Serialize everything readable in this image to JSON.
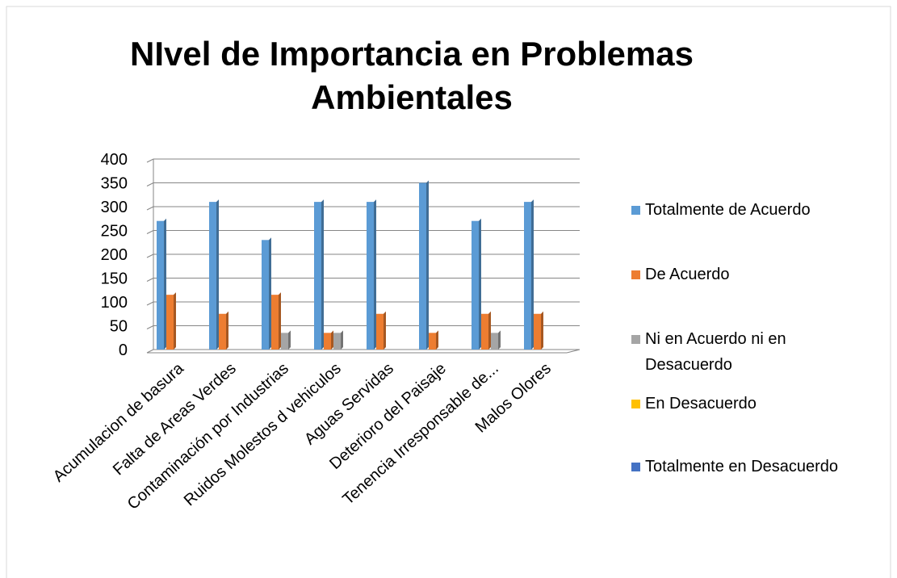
{
  "chart_data": {
    "type": "bar",
    "title": "NIvel de Importancia en Problemas Ambientales",
    "categories": [
      "Acumulacion de basura",
      "Falta de Areas Verdes",
      "Contaminación por Industrias",
      "Ruidos Molestos d vehiculos",
      "Aguas Servidas",
      "Deterioro del Paisaje",
      "Tenencia Irresponsable de...",
      "Malos Olores"
    ],
    "series": [
      {
        "name": "Totalmente de Acuerdo",
        "color": "#5b9bd5",
        "values": [
          270,
          310,
          230,
          310,
          310,
          350,
          270,
          310
        ]
      },
      {
        "name": "De Acuerdo",
        "color": "#ed7d31",
        "values": [
          115,
          75,
          115,
          35,
          75,
          35,
          75,
          75
        ]
      },
      {
        "name": "Ni en Acuerdo ni en Desacuerdo",
        "color": "#a5a5a5",
        "values": [
          0,
          0,
          35,
          35,
          0,
          0,
          35,
          0
        ]
      },
      {
        "name": "En Desacuerdo",
        "color": "#ffc000",
        "values": [
          0,
          0,
          0,
          0,
          0,
          0,
          0,
          0
        ]
      },
      {
        "name": "Totalmente en Desacuerdo",
        "color": "#4472c4",
        "values": [
          0,
          0,
          0,
          0,
          0,
          0,
          0,
          0
        ]
      }
    ],
    "ylim": [
      0,
      400
    ],
    "yticks": [
      0,
      50,
      100,
      150,
      200,
      250,
      300,
      350,
      400
    ],
    "grid": true,
    "legend": "right"
  }
}
